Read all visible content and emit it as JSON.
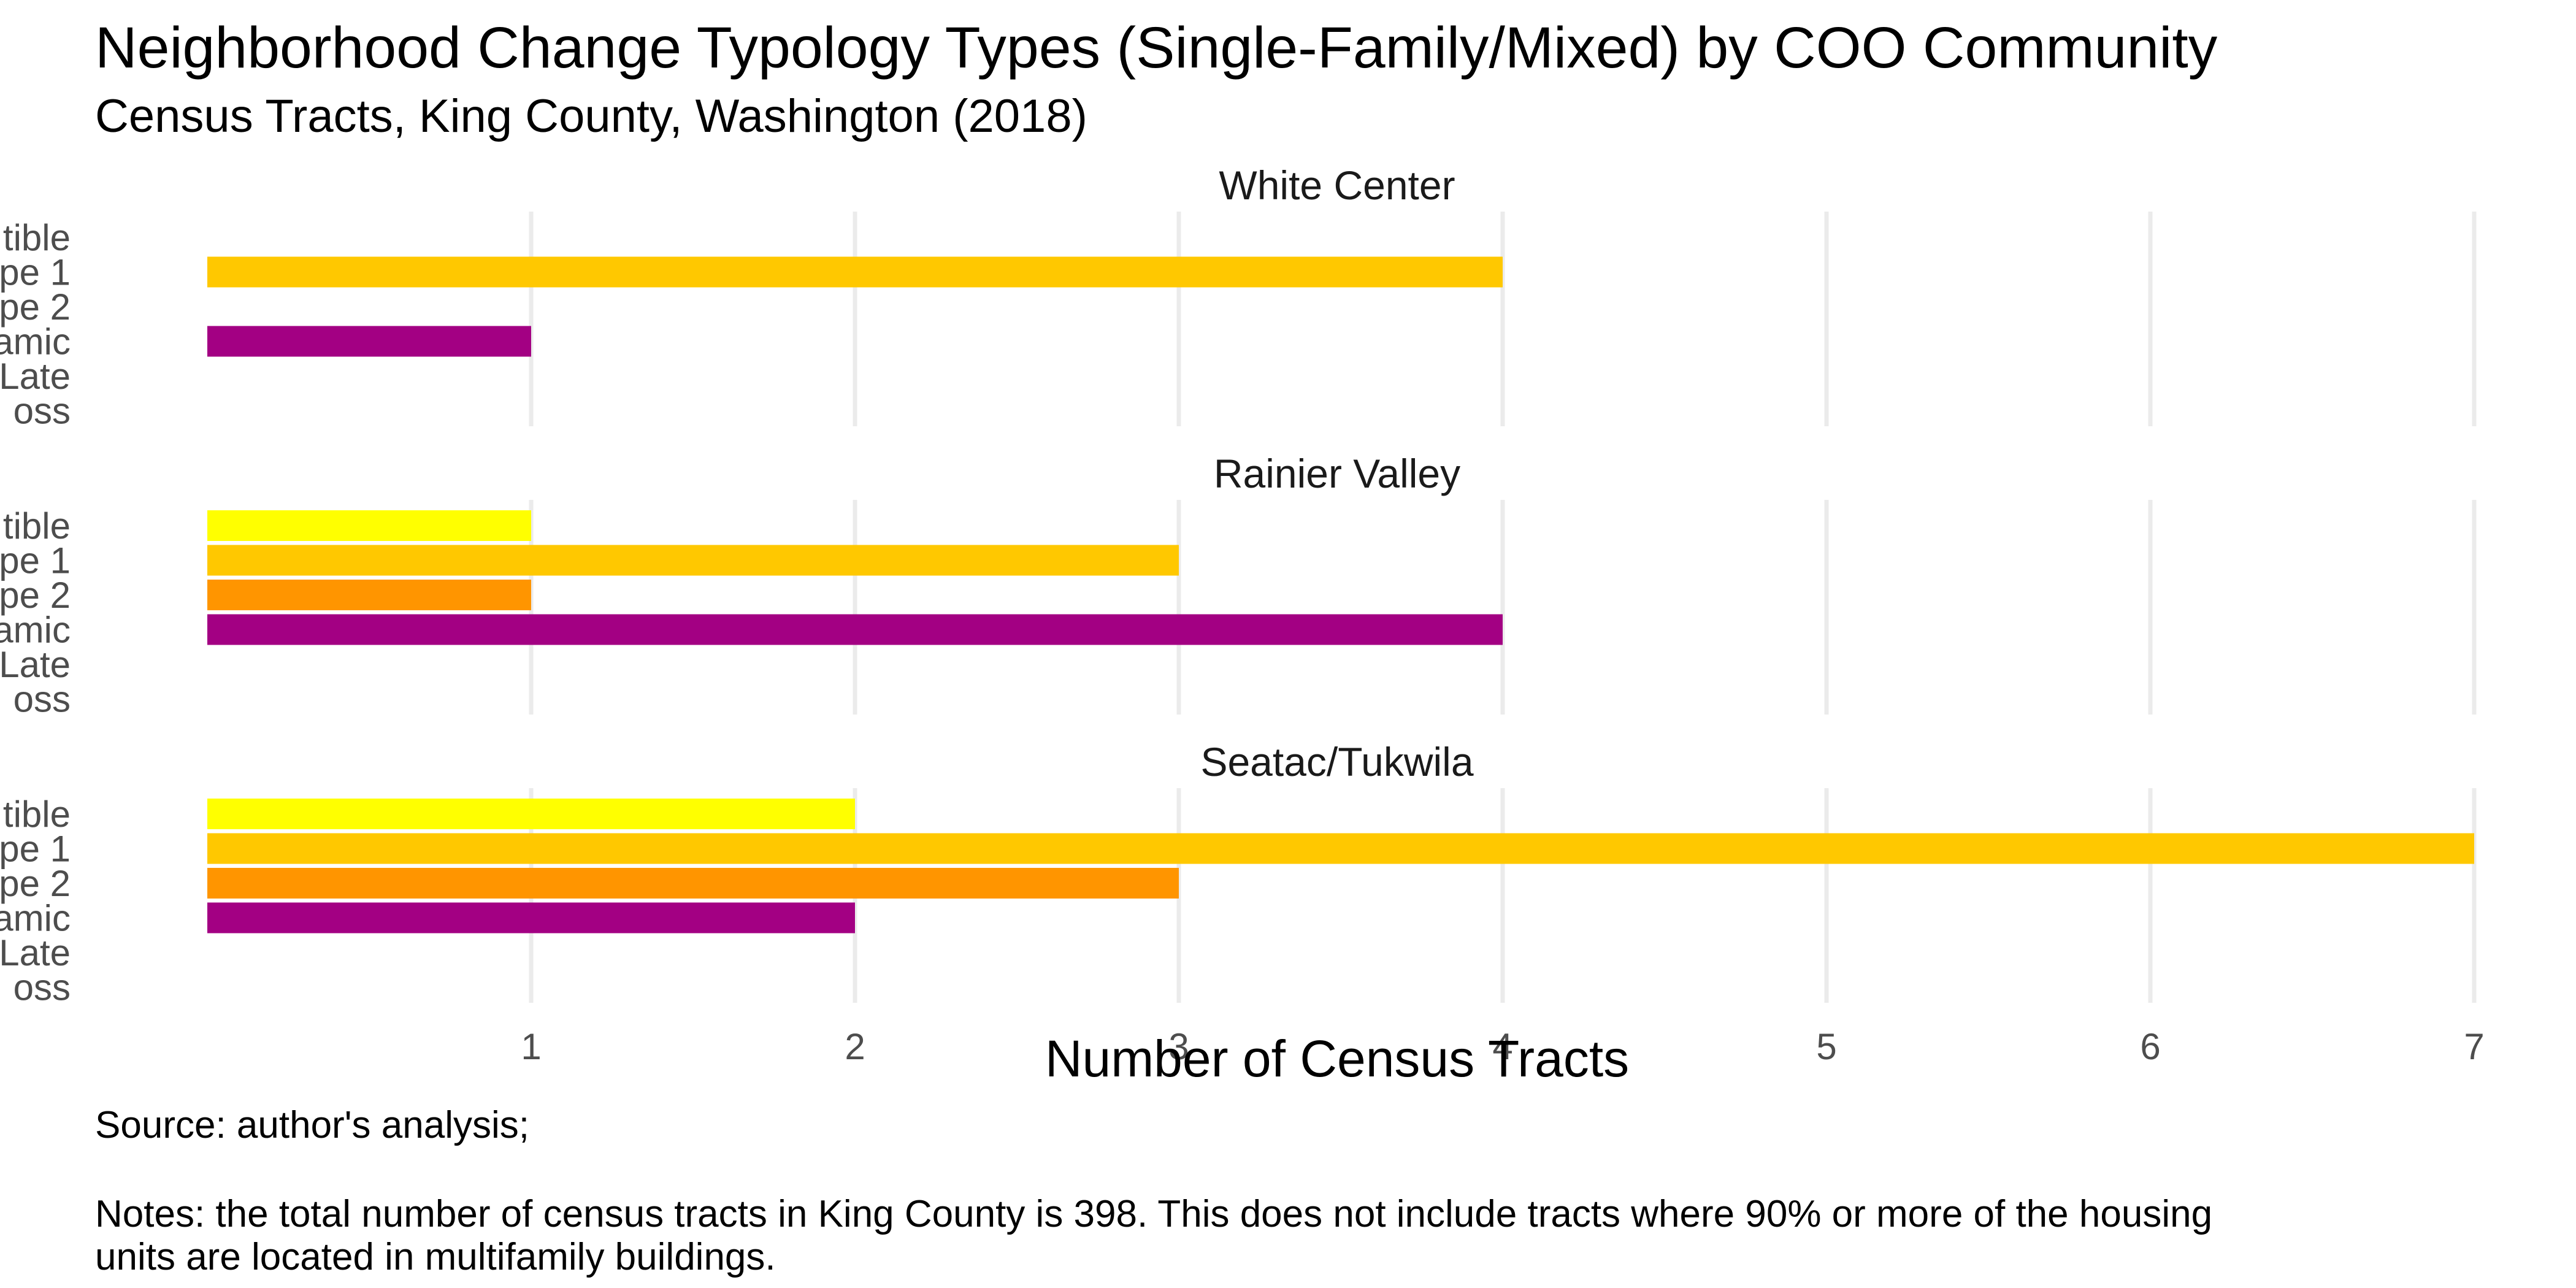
{
  "chart_data": {
    "type": "bar",
    "orientation": "horizontal",
    "title": "Neighborhood Change Typology Types (Single-Family/Mixed) by COO Community",
    "subtitle": "Census Tracts, King County, Washington (2018)",
    "xlabel": "Number of Census Tracts",
    "ylabel": "",
    "xlim": [
      0,
      7
    ],
    "x_ticks": [
      1,
      2,
      3,
      4,
      5,
      6,
      7
    ],
    "grid": "vertical major gridlines",
    "category_labels_visible": [
      "tible",
      "pe 1",
      "pe 2",
      "amic",
      "Late",
      "oss"
    ],
    "colors": [
      "#FFFF00",
      "#FFC800",
      "#FF9500",
      "#A30083",
      "#A30083",
      "#A30083"
    ],
    "facets": [
      {
        "name": "White Center",
        "values": [
          0,
          4,
          0,
          1,
          0,
          0
        ]
      },
      {
        "name": "Rainier Valley",
        "values": [
          1,
          3,
          1,
          4,
          0,
          0
        ]
      },
      {
        "name": "Seatac/Tukwila",
        "values": [
          2,
          7,
          3,
          2,
          0,
          0
        ]
      }
    ],
    "caption_source": "Source: author's analysis;",
    "caption_notes_line1": "Notes: the total number of census tracts in King County is 398. This does not include tracts where 90% or more of the housing",
    "caption_notes_line2": "units are located in multifamily buildings."
  }
}
